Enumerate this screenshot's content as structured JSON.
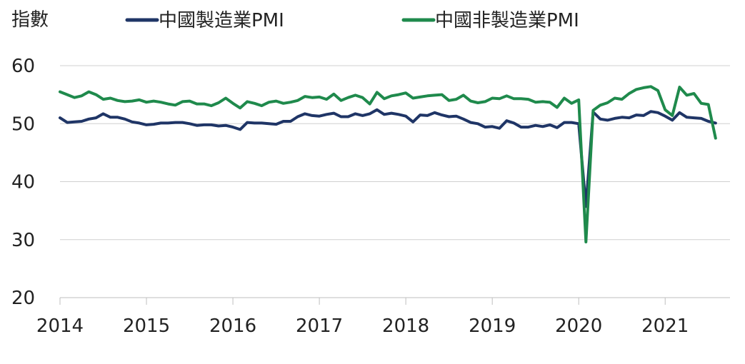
{
  "chart_data": {
    "type": "line",
    "title": "",
    "xlabel": "",
    "ylabel": "指數",
    "ylim": [
      20,
      60
    ],
    "yticks": [
      20,
      30,
      40,
      50,
      60
    ],
    "xticks": [
      "2014",
      "2015",
      "2016",
      "2017",
      "2018",
      "2019",
      "2020",
      "2021"
    ],
    "grid": "horizontal",
    "legend_position": "top",
    "x_start": "2014-01",
    "series": [
      {
        "name": "中國製造業PMI",
        "color": "#1f3566",
        "values": [
          51.0,
          50.2,
          50.3,
          50.4,
          50.8,
          51.0,
          51.7,
          51.1,
          51.1,
          50.8,
          50.3,
          50.1,
          49.8,
          49.9,
          50.1,
          50.1,
          50.2,
          50.2,
          50.0,
          49.7,
          49.8,
          49.8,
          49.6,
          49.7,
          49.4,
          49.0,
          50.2,
          50.1,
          50.1,
          50.0,
          49.9,
          50.4,
          50.4,
          51.2,
          51.7,
          51.4,
          51.3,
          51.6,
          51.8,
          51.2,
          51.2,
          51.7,
          51.4,
          51.7,
          52.4,
          51.6,
          51.8,
          51.6,
          51.3,
          50.3,
          51.5,
          51.4,
          51.9,
          51.5,
          51.2,
          51.3,
          50.8,
          50.2,
          50.0,
          49.4,
          49.5,
          49.2,
          50.5,
          50.1,
          49.4,
          49.4,
          49.7,
          49.5,
          49.8,
          49.3,
          50.2,
          50.2,
          50.0,
          35.7,
          52.0,
          50.8,
          50.6,
          50.9,
          51.1,
          51.0,
          51.5,
          51.4,
          52.1,
          51.9,
          51.3,
          50.6,
          51.9,
          51.1,
          51.0,
          50.9,
          50.4,
          50.1
        ]
      },
      {
        "name": "中國非製造業PMI",
        "color": "#1f8a4c",
        "values": [
          55.5,
          55.0,
          54.5,
          54.8,
          55.5,
          55.0,
          54.2,
          54.4,
          54.0,
          53.8,
          53.9,
          54.1,
          53.7,
          53.9,
          53.7,
          53.4,
          53.2,
          53.8,
          53.9,
          53.4,
          53.4,
          53.1,
          53.6,
          54.4,
          53.5,
          52.7,
          53.8,
          53.5,
          53.1,
          53.7,
          53.9,
          53.5,
          53.7,
          54.0,
          54.7,
          54.5,
          54.6,
          54.2,
          55.1,
          54.0,
          54.5,
          54.9,
          54.5,
          53.4,
          55.4,
          54.3,
          54.8,
          55.0,
          55.3,
          54.4,
          54.6,
          54.8,
          54.9,
          55.0,
          54.0,
          54.2,
          54.9,
          53.9,
          53.6,
          53.8,
          54.4,
          54.3,
          54.8,
          54.3,
          54.3,
          54.2,
          53.7,
          53.8,
          53.7,
          52.8,
          54.4,
          53.5,
          54.1,
          29.6,
          52.3,
          53.2,
          53.6,
          54.4,
          54.2,
          55.2,
          55.9,
          56.2,
          56.4,
          55.7,
          52.4,
          51.4,
          56.3,
          54.9,
          55.2,
          53.5,
          53.3,
          47.5
        ]
      }
    ]
  }
}
